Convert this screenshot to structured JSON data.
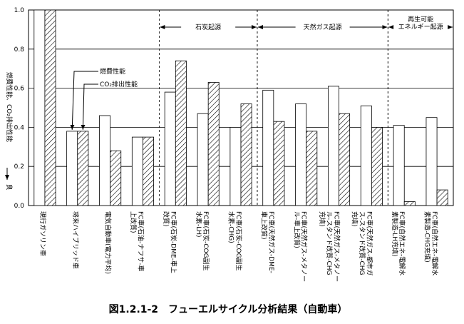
{
  "chart_data": {
    "type": "bar",
    "caption": "図1.2.1-2　フューエルサイクル分析結果（自動車）",
    "ylabel": "燃費性能、CO₂排出性能",
    "good_label": "良",
    "categories": [
      "現行ガソリン車",
      "将来ハイブリッド車",
      "電気自動車(電力平均)",
      "FC車(石油-ナフサ-車\n上改質)",
      "FC車(石炭-DME-車上\n改質)",
      "FC車(石炭-COG副生\n水素-LH)",
      "FC車(石炭-COG副生\n水素-CHG)",
      "FC車(天然ガス-DME-\n車上改質)",
      "FC車(天然ガス-メタノー\nル-車上改質)",
      "FC車(天然ガス-メタノー\nル-スタンド改質-CHG\n充填)",
      "FC車(天然ガス-都市ガ\nス-スタンド改質-CHG\n充填)",
      "FC車(自然エネ-電解水\n素製造-LH充填)",
      "FC車(自然エネ-電解水\n素製造-CHG充填)"
    ],
    "series": [
      {
        "name": "燃費性能",
        "color": "#ffffff",
        "values": [
          1.0,
          0.38,
          0.46,
          0.35,
          0.58,
          0.47,
          0.4,
          0.59,
          0.52,
          0.61,
          0.51,
          0.41,
          0.45
        ]
      },
      {
        "name": "CO₂排出性能",
        "color": "hatch",
        "values": [
          1.0,
          0.38,
          0.28,
          0.35,
          0.74,
          0.63,
          0.52,
          0.43,
          0.38,
          0.47,
          0.4,
          0.02,
          0.08
        ]
      }
    ],
    "groups": [
      {
        "label": "石炭起源",
        "from": 4,
        "to": 6
      },
      {
        "label": "天然ガス起源",
        "from": 7,
        "to": 10
      },
      {
        "label": "再生可能\nエネルギー起源",
        "from": 11,
        "to": 12
      }
    ],
    "ylim": [
      0,
      1
    ],
    "yticks": [
      {
        "value": 0,
        "label": "0.0"
      },
      0.2,
      0.4,
      0.6,
      0.8,
      {
        "value": 1,
        "label": "1.0"
      }
    ],
    "grid": true
  }
}
